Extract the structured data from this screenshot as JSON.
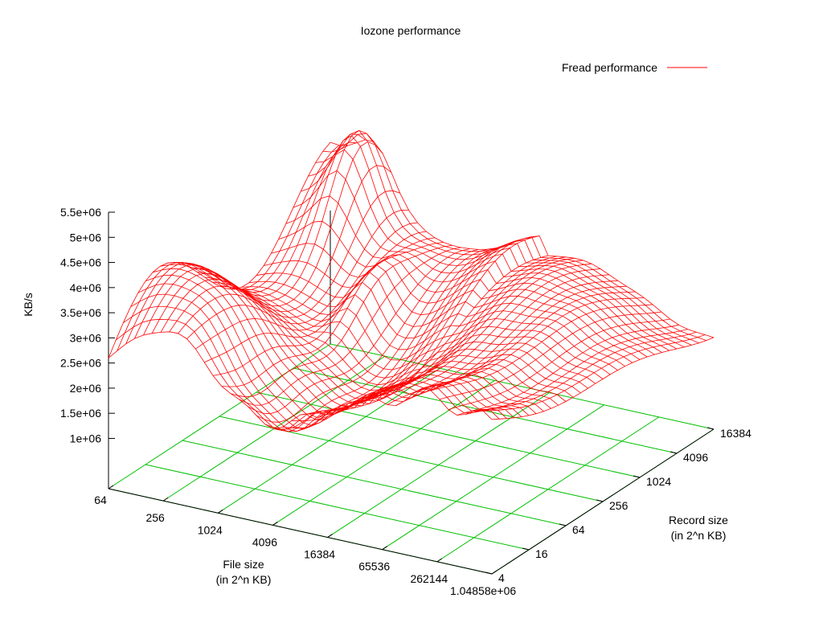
{
  "chart_data": {
    "type": "surface",
    "title": "Iozone performance",
    "zlabel": "KB/s",
    "xlabel": [
      "File size",
      "(in 2^n KB)"
    ],
    "ylabel": [
      "Record size",
      "(in 2^n KB)"
    ],
    "legend": {
      "label": "Fread performance",
      "position": "top-right"
    },
    "x_ticks": [
      "64",
      "256",
      "1024",
      "4096",
      "16384",
      "65536",
      "262144",
      "1.04858e+06"
    ],
    "y_ticks": [
      "4",
      "16",
      "64",
      "256",
      "1024",
      "4096",
      "16384"
    ],
    "z_ticks": [
      "1e+06",
      "1.5e+06",
      "2e+06",
      "2.5e+06",
      "3e+06",
      "3.5e+06",
      "4e+06",
      "4.5e+06",
      "5e+06",
      "5.5e+06"
    ],
    "x_log2_range": [
      6,
      20
    ],
    "y_log2_range": [
      2,
      14
    ],
    "zlim": [
      1000000,
      5500000
    ],
    "grid": true,
    "colors": {
      "surface": "#ff0000",
      "grid": "#00c000",
      "axes": "#000000"
    }
  }
}
